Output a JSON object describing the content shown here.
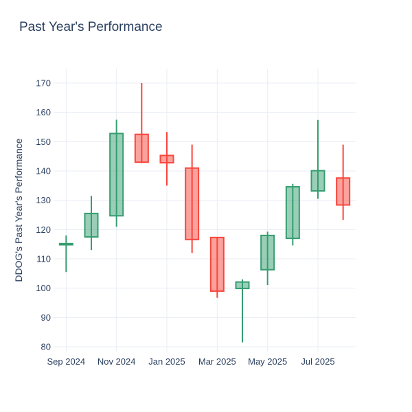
{
  "chart": {
    "title": "Past Year's Performance",
    "y_axis_title": "DDOG's Past Year's Performance"
  },
  "colors": {
    "background": "#ffffff",
    "text": "#2a3f5f",
    "grid": "#e8ecf4",
    "increasing_line": "#359d70",
    "decreasing_line": "#f8463c",
    "body_fill_opacity": 0.5
  },
  "chart_data": {
    "type": "candlestick",
    "title": "Past Year's Performance",
    "xlabel": "",
    "ylabel": "DDOG's Past Year's Performance",
    "x": [
      "Sep 2024",
      "Oct 2024",
      "Nov 2024",
      "Dec 2024",
      "Jan 2025",
      "Feb 2025",
      "Mar 2025",
      "Apr 2025",
      "May 2025",
      "Jun 2025",
      "Jul 2025",
      "Aug 2025"
    ],
    "series": [
      {
        "name": "open",
        "values": [
          114.8,
          117.5,
          124.7,
          152.5,
          145.3,
          141.0,
          117.3,
          99.9,
          106.3,
          117.0,
          133.2,
          137.6
        ]
      },
      {
        "name": "high",
        "values": [
          118.0,
          131.5,
          157.5,
          170.0,
          153.3,
          149.0,
          117.3,
          103.0,
          119.3,
          135.6,
          157.4,
          149.0
        ]
      },
      {
        "name": "low",
        "values": [
          105.5,
          113.0,
          121.0,
          142.7,
          135.0,
          112.0,
          96.7,
          81.5,
          101.1,
          114.6,
          130.5,
          123.3
        ]
      },
      {
        "name": "close",
        "values": [
          115.2,
          125.5,
          152.8,
          143.0,
          142.8,
          116.6,
          99.0,
          102.1,
          118.0,
          134.6,
          140.1,
          128.4
        ]
      }
    ],
    "y_ticks": [
      80,
      90,
      100,
      110,
      120,
      130,
      140,
      150,
      160,
      170
    ],
    "x_tick_labels": [
      "Sep 2024",
      "Nov 2024",
      "Jan 2025",
      "Mar 2025",
      "May 2025",
      "Jul 2025"
    ],
    "x_tick_indices": [
      0,
      2,
      4,
      6,
      8,
      10
    ],
    "ylim": [
      80,
      170
    ],
    "grid": true,
    "legend": false
  }
}
